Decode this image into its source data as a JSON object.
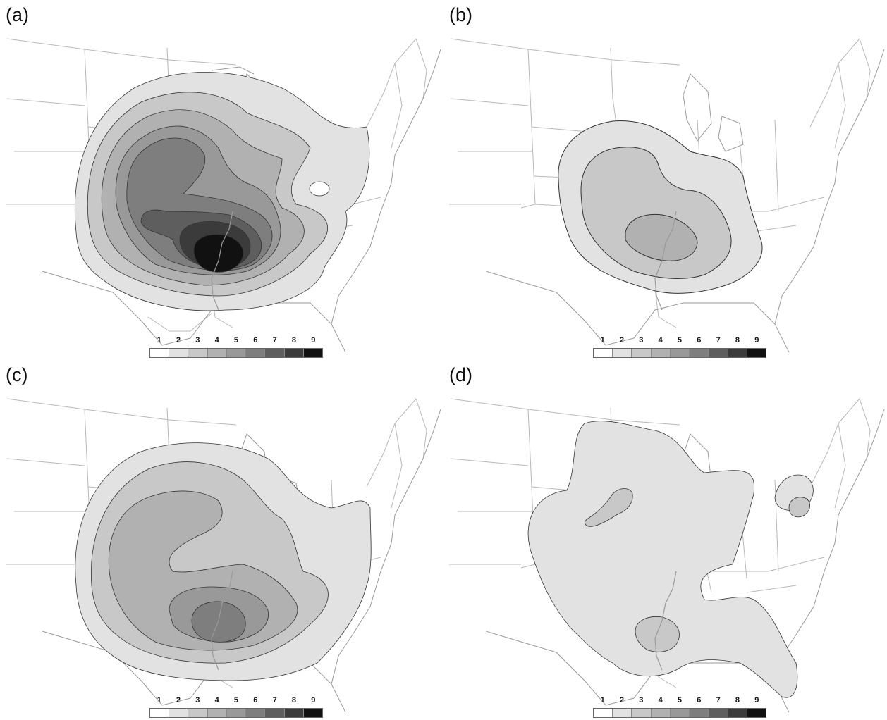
{
  "panels": [
    {
      "label": "(a)",
      "max_level": 9
    },
    {
      "label": "(b)",
      "max_level": 4
    },
    {
      "label": "(c)",
      "max_level": 6
    },
    {
      "label": "(d)",
      "max_level": 3
    }
  ],
  "legend": {
    "levels": [
      "1",
      "2",
      "3",
      "4",
      "5",
      "6",
      "7",
      "8",
      "9"
    ],
    "colors": [
      "#ffffff",
      "#e2e2e2",
      "#c8c8c8",
      "#b1b1b1",
      "#999999",
      "#7e7e7e",
      "#5e5e5e",
      "#3b3b3b",
      "#111111"
    ]
  },
  "map_colors": {
    "state_lines": "#b8b8b8",
    "contour_lines": "#333333",
    "coast": "#9a9a9a"
  }
}
